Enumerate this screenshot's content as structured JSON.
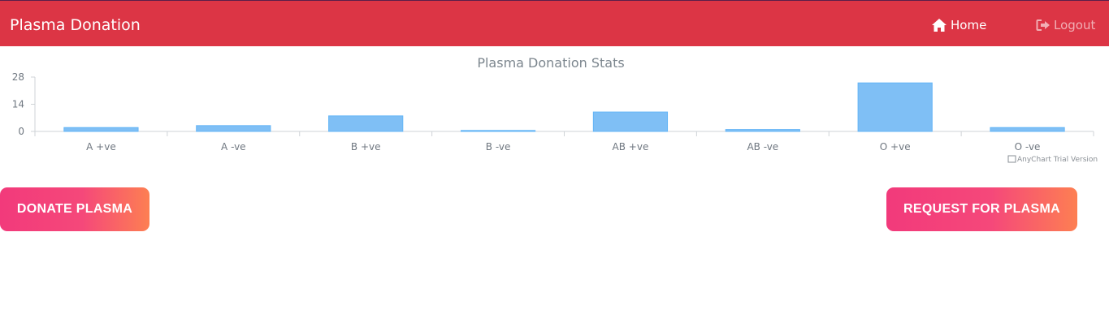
{
  "navbar": {
    "brand": "Plasma Donation",
    "home_label": "Home",
    "logout_label": "Logout",
    "home_icon": "home-icon",
    "logout_icon": "logout-icon"
  },
  "chart_data": {
    "type": "bar",
    "title": "Plasma Donation Stats",
    "categories": [
      "A +ve",
      "A -ve",
      "B +ve",
      "B -ve",
      "AB +ve",
      "AB -ve",
      "O +ve",
      "O -ve"
    ],
    "values": [
      2,
      3,
      8,
      0.5,
      10,
      1,
      25,
      2
    ],
    "ylim": [
      0,
      28
    ],
    "yticks": [
      0,
      14,
      28
    ],
    "xlabel": "",
    "ylabel": "",
    "grid": false,
    "bar_color": "#7fbff5",
    "bar_stroke": "#64b5f6",
    "credit": "AnyChart Trial Version"
  },
  "actions": {
    "donate_label": "DONATE PLASMA",
    "request_label": "REQUEST FOR PLASMA"
  },
  "colors": {
    "navbar": "#dc3545",
    "button_gradient_start": "#f23a7b",
    "button_gradient_end": "#fd7f52"
  }
}
